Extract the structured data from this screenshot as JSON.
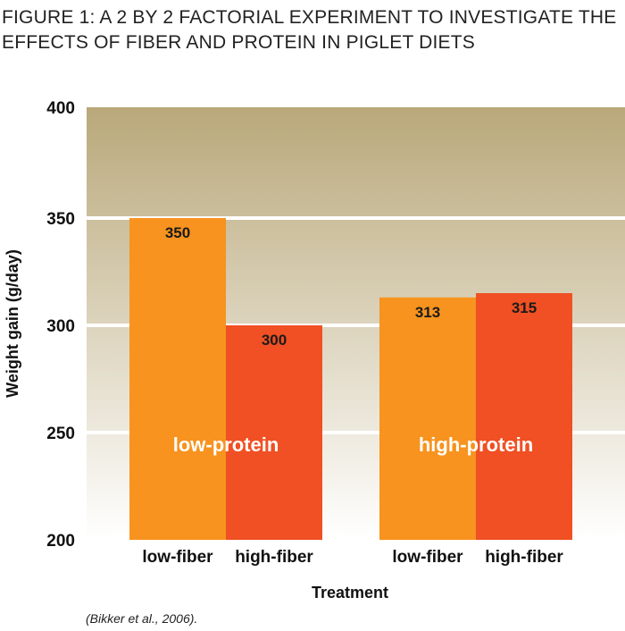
{
  "chart_data": {
    "type": "bar",
    "title": "FIGURE 1: A 2 BY 2 FACTORIAL EXPERIMENT TO INVESTIGATE THE EFFECTS OF FIBER AND PROTEIN IN PIGLET DIETS",
    "xlabel": "Treatment",
    "ylabel": "Weight gain (g/day)",
    "ylim": [
      200,
      400
    ],
    "yticks": [
      200,
      250,
      300,
      350,
      400
    ],
    "grid": true,
    "groups": [
      {
        "label": "low-protein",
        "bars": [
          {
            "category": "low-fiber",
            "value": 350,
            "color": "#f7931e"
          },
          {
            "category": "high-fiber",
            "value": 300,
            "color": "#f05023"
          }
        ]
      },
      {
        "label": "high-protein",
        "bars": [
          {
            "category": "low-fiber",
            "value": 313,
            "color": "#f7931e"
          },
          {
            "category": "high-fiber",
            "value": 315,
            "color": "#f05023"
          }
        ]
      }
    ],
    "source": "(Bikker et al., 2006).",
    "background_colors": {
      "top": "#b9a87a",
      "bottom": "#ffffff"
    }
  }
}
